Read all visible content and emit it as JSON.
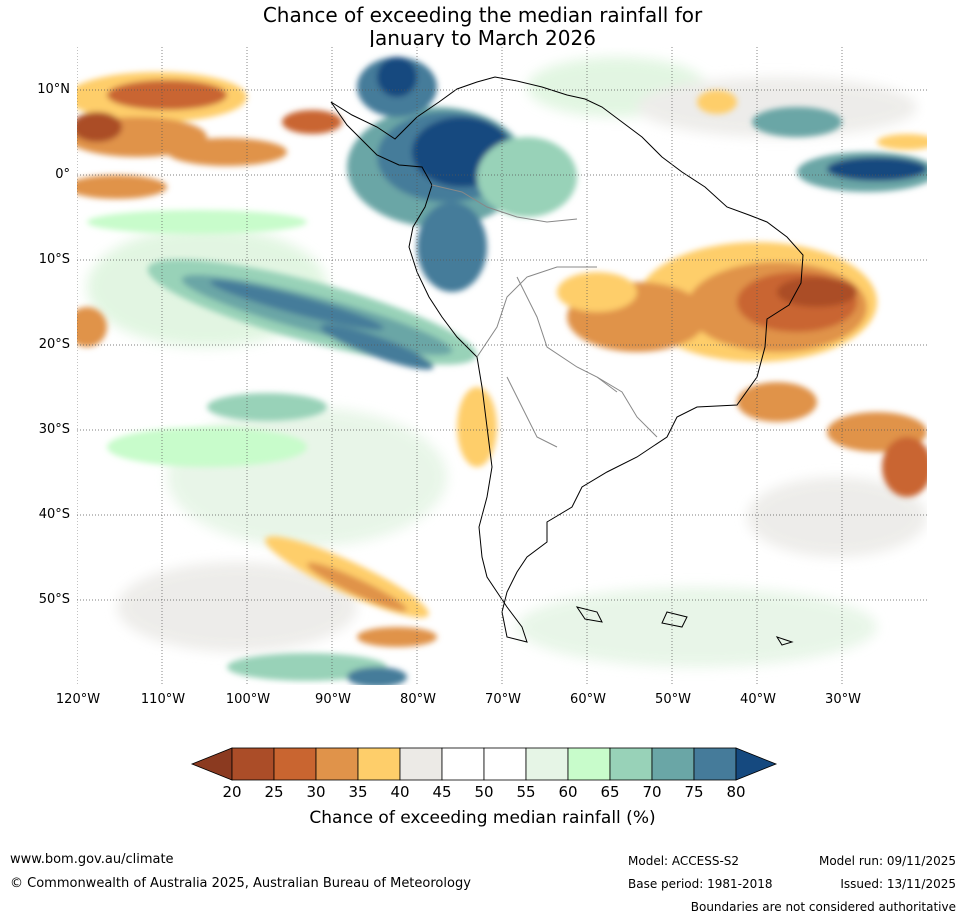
{
  "title": {
    "line1": "Chance of exceeding the median rainfall for",
    "line2": "January to March 2026"
  },
  "map": {
    "lat_labels": [
      "10°N",
      "0°",
      "10°S",
      "20°S",
      "30°S",
      "40°S",
      "50°S"
    ],
    "lon_labels": [
      "120°W",
      "110°W",
      "100°W",
      "90°W",
      "80°W",
      "70°W",
      "60°W",
      "50°W",
      "40°W",
      "30°W"
    ],
    "lat_range": [
      -60,
      15
    ],
    "lon_range": [
      -120,
      -20
    ]
  },
  "colorbar": {
    "ticks": [
      "20",
      "25",
      "30",
      "35",
      "40",
      "45",
      "50",
      "55",
      "60",
      "65",
      "70",
      "75",
      "80"
    ],
    "colors": [
      "#8b3a20",
      "#ab4d28",
      "#c96530",
      "#e0934a",
      "#fece6a",
      "#eceae6",
      "#ffffff",
      "#ffffff",
      "#e6f5e6",
      "#c8fccb",
      "#98d2b8",
      "#6aa6a6",
      "#457b9a",
      "#15497f"
    ],
    "label": "Chance of exceeding median rainfall (%)"
  },
  "footer": {
    "website": "www.bom.gov.au/climate",
    "copyright": "© Commonwealth of Australia 2025, Australian Bureau of Meteorology",
    "model": "Model: ACCESS-S2",
    "base_period": "Base period: 1981-2018",
    "model_run": "Model run: 09/11/2025",
    "issued": "Issued: 13/11/2025",
    "disclaimer": "Boundaries are not considered authoritative"
  }
}
